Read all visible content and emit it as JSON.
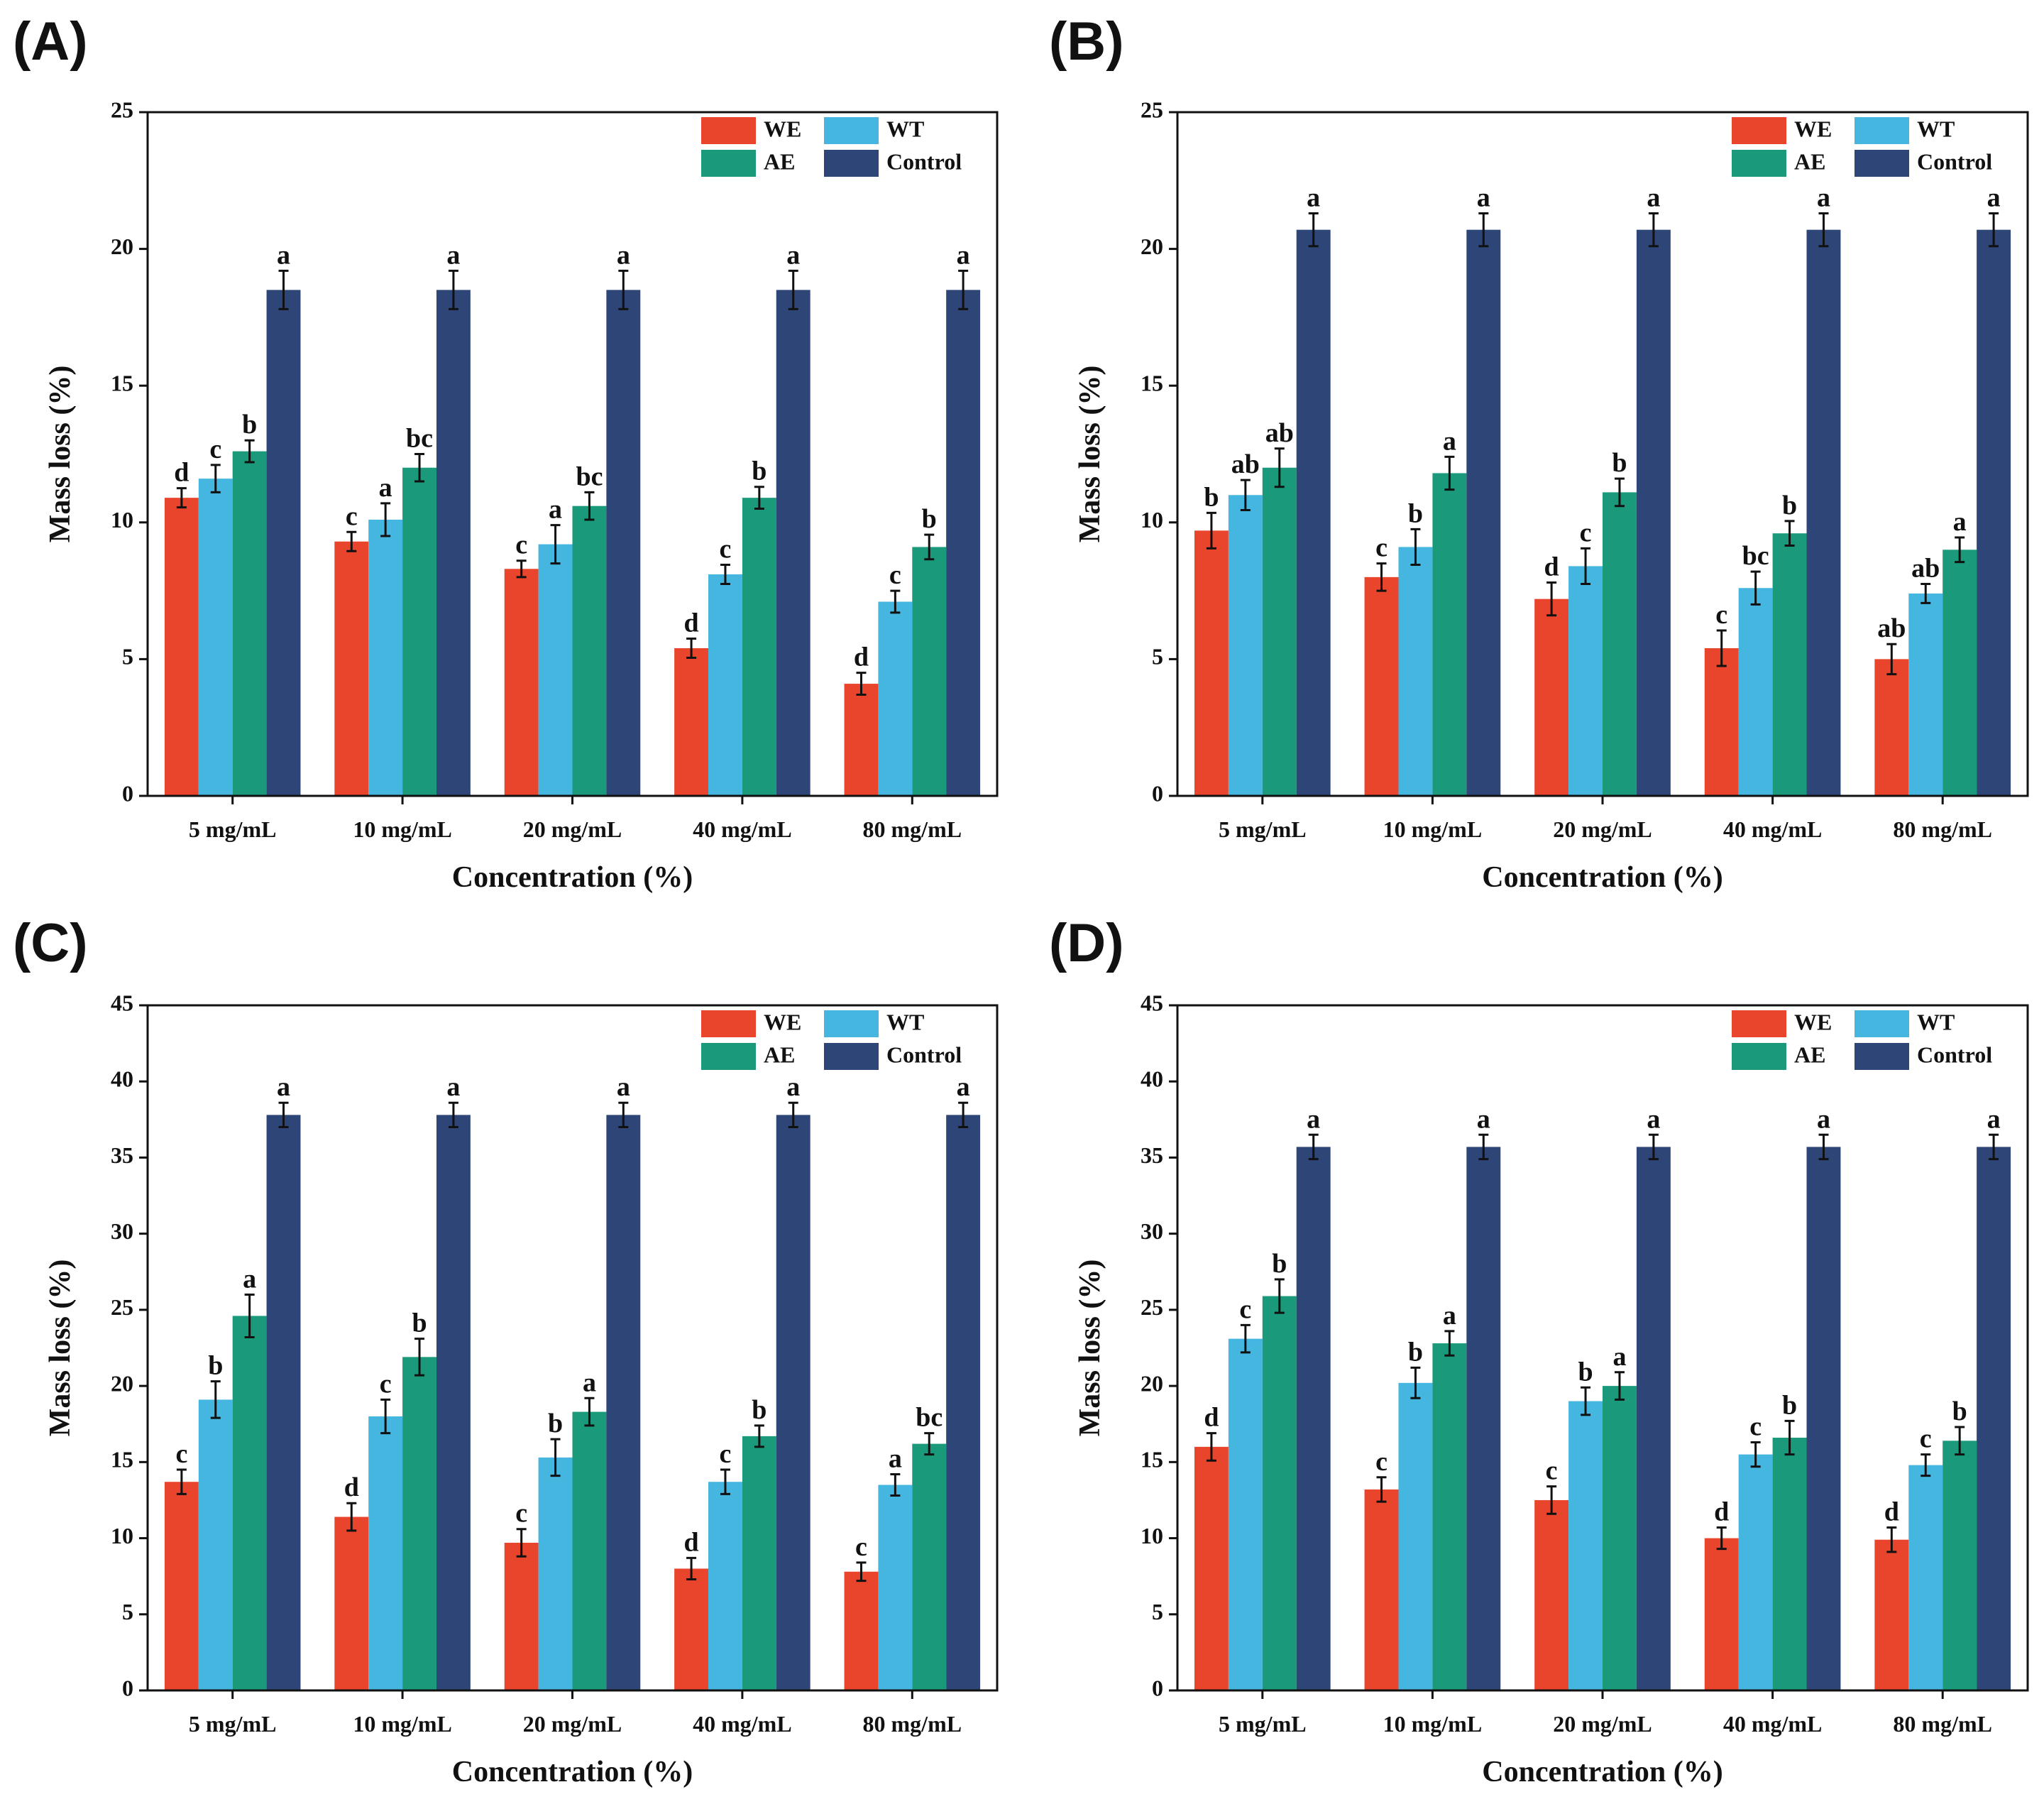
{
  "chart_data": [
    {
      "type": "bar",
      "panel_label": "(A)",
      "xlabel": "Concentration (%)",
      "ylabel": "Mass loss (%)",
      "categories": [
        "5 mg/mL",
        "10 mg/mL",
        "20 mg/mL",
        "40 mg/mL",
        "80 mg/mL"
      ],
      "ylim": [
        0,
        25
      ],
      "yticks": [
        0,
        5,
        10,
        15,
        20,
        25
      ],
      "series": [
        {
          "name": "WE",
          "color": "#e8452c",
          "values": [
            10.9,
            9.3,
            8.3,
            5.4,
            4.1
          ],
          "errors": [
            0.35,
            0.35,
            0.3,
            0.35,
            0.4
          ],
          "letters": [
            "d",
            "c",
            "c",
            "d",
            "d"
          ]
        },
        {
          "name": "WT",
          "color": "#45b6e0",
          "values": [
            11.6,
            10.1,
            9.2,
            8.1,
            7.1
          ],
          "errors": [
            0.5,
            0.6,
            0.7,
            0.35,
            0.4
          ],
          "letters": [
            "c",
            "a",
            "a",
            "c",
            "c"
          ]
        },
        {
          "name": "AE",
          "color": "#1a9a7a",
          "values": [
            12.6,
            12.0,
            10.6,
            10.9,
            9.1
          ],
          "errors": [
            0.4,
            0.5,
            0.5,
            0.4,
            0.45
          ],
          "letters": [
            "b",
            "bc",
            "bc",
            "b",
            "b"
          ]
        },
        {
          "name": "Control",
          "color": "#2e4577",
          "values": [
            18.5,
            18.5,
            18.5,
            18.5,
            18.5
          ],
          "errors": [
            0.7,
            0.7,
            0.7,
            0.7,
            0.7
          ],
          "letters": [
            "a",
            "a",
            "a",
            "a",
            "a"
          ]
        }
      ]
    },
    {
      "type": "bar",
      "panel_label": "(B)",
      "xlabel": "Concentration (%)",
      "ylabel": "Mass loss (%)",
      "categories": [
        "5 mg/mL",
        "10 mg/mL",
        "20 mg/mL",
        "40 mg/mL",
        "80 mg/mL"
      ],
      "ylim": [
        0,
        25
      ],
      "yticks": [
        0,
        5,
        10,
        15,
        20,
        25
      ],
      "series": [
        {
          "name": "WE",
          "color": "#e8452c",
          "values": [
            9.7,
            8.0,
            7.2,
            5.4,
            5.0
          ],
          "errors": [
            0.65,
            0.5,
            0.6,
            0.65,
            0.55
          ],
          "letters": [
            "b",
            "c",
            "d",
            "c",
            "ab"
          ]
        },
        {
          "name": "WT",
          "color": "#45b6e0",
          "values": [
            11.0,
            9.1,
            8.4,
            7.6,
            7.4
          ],
          "errors": [
            0.55,
            0.65,
            0.65,
            0.6,
            0.35
          ],
          "letters": [
            "ab",
            "b",
            "c",
            "bc",
            "ab"
          ]
        },
        {
          "name": "AE",
          "color": "#1a9a7a",
          "values": [
            12.0,
            11.8,
            11.1,
            9.6,
            9.0
          ],
          "errors": [
            0.7,
            0.6,
            0.5,
            0.45,
            0.45
          ],
          "letters": [
            "ab",
            "a",
            "b",
            "b",
            "a"
          ]
        },
        {
          "name": "Control",
          "color": "#2e4577",
          "values": [
            20.7,
            20.7,
            20.7,
            20.7,
            20.7
          ],
          "errors": [
            0.6,
            0.6,
            0.6,
            0.6,
            0.6
          ],
          "letters": [
            "a",
            "a",
            "a",
            "a",
            "a"
          ]
        }
      ]
    },
    {
      "type": "bar",
      "panel_label": "(C)",
      "xlabel": "Concentration (%)",
      "ylabel": "Mass loss (%)",
      "categories": [
        "5 mg/mL",
        "10 mg/mL",
        "20 mg/mL",
        "40 mg/mL",
        "80 mg/mL"
      ],
      "ylim": [
        0,
        45
      ],
      "yticks": [
        0,
        5,
        10,
        15,
        20,
        25,
        30,
        35,
        40,
        45
      ],
      "series": [
        {
          "name": "WE",
          "color": "#e8452c",
          "values": [
            13.7,
            11.4,
            9.7,
            8.0,
            7.8
          ],
          "errors": [
            0.8,
            0.9,
            0.9,
            0.7,
            0.6
          ],
          "letters": [
            "c",
            "d",
            "c",
            "d",
            "c"
          ]
        },
        {
          "name": "WT",
          "color": "#45b6e0",
          "values": [
            19.1,
            18.0,
            15.3,
            13.7,
            13.5
          ],
          "errors": [
            1.2,
            1.1,
            1.2,
            0.8,
            0.7
          ],
          "letters": [
            "b",
            "c",
            "b",
            "c",
            "a"
          ]
        },
        {
          "name": "AE",
          "color": "#1a9a7a",
          "values": [
            24.6,
            21.9,
            18.3,
            16.7,
            16.2
          ],
          "errors": [
            1.4,
            1.2,
            0.9,
            0.7,
            0.7
          ],
          "letters": [
            "a",
            "b",
            "a",
            "b",
            "bc"
          ]
        },
        {
          "name": "Control",
          "color": "#2e4577",
          "values": [
            37.8,
            37.8,
            37.8,
            37.8,
            37.8
          ],
          "errors": [
            0.8,
            0.8,
            0.8,
            0.8,
            0.8
          ],
          "letters": [
            "a",
            "a",
            "a",
            "a",
            "a"
          ]
        }
      ]
    },
    {
      "type": "bar",
      "panel_label": "(D)",
      "xlabel": "Concentration (%)",
      "ylabel": "Mass loss (%)",
      "categories": [
        "5 mg/mL",
        "10 mg/mL",
        "20 mg/mL",
        "40 mg/mL",
        "80 mg/mL"
      ],
      "ylim": [
        0,
        45
      ],
      "yticks": [
        0,
        5,
        10,
        15,
        20,
        25,
        30,
        35,
        40,
        45
      ],
      "series": [
        {
          "name": "WE",
          "color": "#e8452c",
          "values": [
            16.0,
            13.2,
            12.5,
            10.0,
            9.9
          ],
          "errors": [
            0.9,
            0.8,
            0.9,
            0.7,
            0.8
          ],
          "letters": [
            "d",
            "c",
            "c",
            "d",
            "d"
          ]
        },
        {
          "name": "WT",
          "color": "#45b6e0",
          "values": [
            23.1,
            20.2,
            19.0,
            15.5,
            14.8
          ],
          "errors": [
            0.9,
            1.0,
            0.9,
            0.8,
            0.7
          ],
          "letters": [
            "c",
            "b",
            "b",
            "c",
            "c"
          ]
        },
        {
          "name": "AE",
          "color": "#1a9a7a",
          "values": [
            25.9,
            22.8,
            20.0,
            16.6,
            16.4
          ],
          "errors": [
            1.1,
            0.8,
            0.9,
            1.1,
            0.9
          ],
          "letters": [
            "b",
            "a",
            "a",
            "b",
            "b"
          ]
        },
        {
          "name": "Control",
          "color": "#2e4577",
          "values": [
            35.7,
            35.7,
            35.7,
            35.7,
            35.7
          ],
          "errors": [
            0.8,
            0.8,
            0.8,
            0.8,
            0.8
          ],
          "letters": [
            "a",
            "a",
            "a",
            "a",
            "a"
          ]
        }
      ]
    }
  ]
}
